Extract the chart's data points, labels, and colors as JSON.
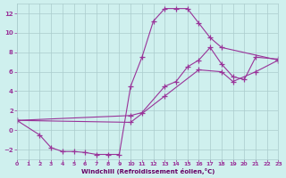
{
  "background_color": "#cff0ee",
  "grid_color": "#aacccc",
  "line_color": "#993399",
  "xlabel": "Windchill (Refroidissement éolien,°C)",
  "xlabel_color": "#660066",
  "ylabel_left_ticks": [
    -2,
    0,
    2,
    4,
    6,
    8,
    10,
    12
  ],
  "xlim": [
    0,
    23
  ],
  "ylim": [
    -3,
    13
  ],
  "xticks": [
    0,
    1,
    2,
    3,
    4,
    5,
    6,
    7,
    8,
    9,
    10,
    11,
    12,
    13,
    14,
    15,
    16,
    17,
    18,
    19,
    20,
    21,
    22,
    23
  ],
  "series1_x": [
    0,
    2,
    3,
    4,
    5,
    6,
    7,
    8,
    9,
    10,
    11,
    12,
    13,
    14,
    15,
    16,
    17,
    18,
    23
  ],
  "series1_y": [
    1.0,
    -0.5,
    -1.8,
    -2.2,
    -2.2,
    -2.3,
    -2.5,
    -2.5,
    -2.5,
    4.5,
    7.5,
    11.2,
    12.5,
    12.5,
    12.5,
    11.0,
    9.5,
    8.5,
    7.2
  ],
  "series2_x": [
    0,
    10,
    11,
    13,
    14,
    15,
    16,
    17,
    18,
    19,
    20,
    21,
    23
  ],
  "series2_y": [
    1.0,
    1.5,
    1.8,
    4.5,
    5.0,
    6.5,
    7.2,
    8.5,
    6.8,
    5.5,
    5.2,
    7.5,
    7.3
  ],
  "series3_x": [
    0,
    10,
    13,
    16,
    18,
    19,
    21,
    23
  ],
  "series3_y": [
    1.0,
    0.8,
    3.5,
    6.2,
    6.0,
    5.0,
    6.0,
    7.2
  ]
}
